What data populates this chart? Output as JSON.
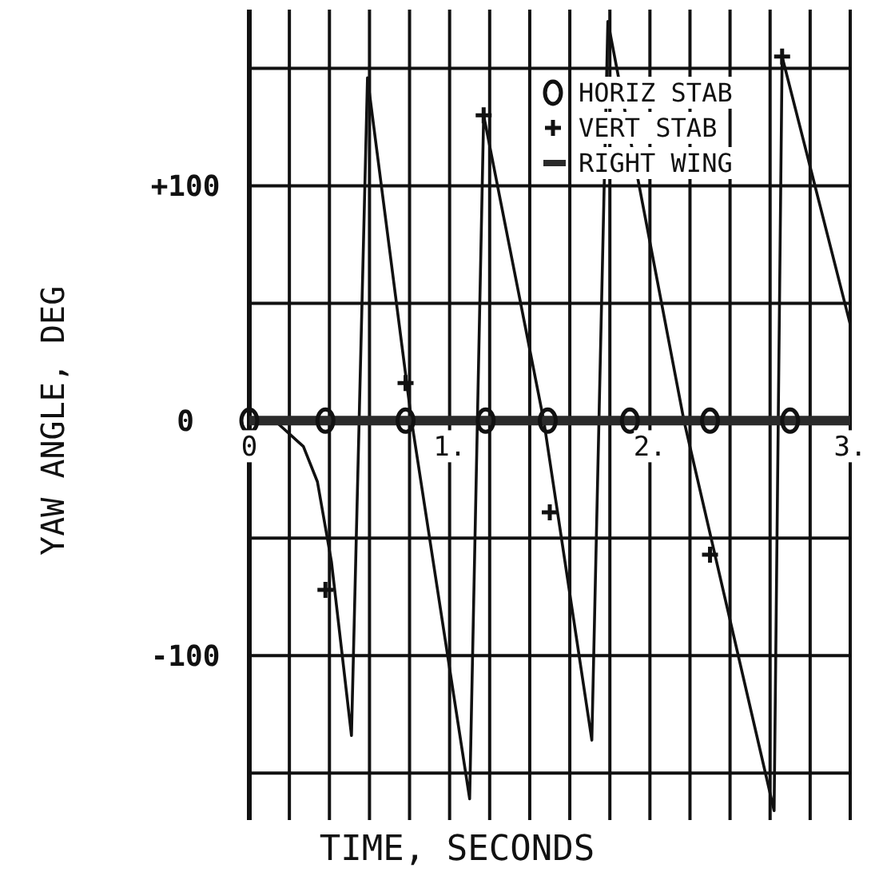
{
  "chart_data": {
    "type": "line",
    "xlabel": "TIME, SECONDS",
    "ylabel": "YAW ANGLE, DEG",
    "xlim": [
      0,
      3
    ],
    "ylim": [
      -170,
      175
    ],
    "xticks": [
      {
        "value": 0,
        "label": "0"
      },
      {
        "value": 0.2,
        "label": null
      },
      {
        "value": 0.4,
        "label": null
      },
      {
        "value": 0.6,
        "label": null
      },
      {
        "value": 0.8,
        "label": null
      },
      {
        "value": 1,
        "label": "1."
      },
      {
        "value": 1.2,
        "label": null
      },
      {
        "value": 1.4,
        "label": null
      },
      {
        "value": 1.6,
        "label": null
      },
      {
        "value": 1.8,
        "label": null
      },
      {
        "value": 2,
        "label": "2."
      },
      {
        "value": 2.2,
        "label": null
      },
      {
        "value": 2.4,
        "label": null
      },
      {
        "value": 2.6,
        "label": null
      },
      {
        "value": 2.8,
        "label": null
      },
      {
        "value": 3,
        "label": "3."
      }
    ],
    "yticks": [
      {
        "value": -150,
        "label": null
      },
      {
        "value": -100,
        "label": "-100"
      },
      {
        "value": -50,
        "label": null
      },
      {
        "value": 0,
        "label": "0"
      },
      {
        "value": 50,
        "label": null
      },
      {
        "value": 100,
        "label": "+100"
      },
      {
        "value": 150,
        "label": null
      }
    ],
    "grid": true,
    "legend": "top right",
    "series": [
      {
        "name": "HORIZ STAB",
        "type": "scatter",
        "marker": "circle",
        "color": "#111111",
        "x": [
          0,
          0.38,
          0.78,
          1.18,
          1.49,
          1.9,
          2.3,
          2.7
        ],
        "values": [
          0,
          0,
          0,
          0,
          0,
          0,
          0,
          0
        ]
      },
      {
        "name": "VERT STAB",
        "type": "scatter",
        "marker": "cross",
        "color": "#111111",
        "x": [
          0.38,
          0.78,
          1.17,
          1.5,
          2.3,
          2.66
        ],
        "values": [
          -72,
          16,
          130,
          -39,
          -57,
          155
        ]
      },
      {
        "name": "RIGHT WING",
        "marker": "none",
        "color": "#2a2a2a",
        "x": [
          0,
          3
        ],
        "values": [
          0,
          0
        ]
      },
      {
        "type": "line",
        "marker": "none",
        "color": "#111111",
        "x": [
          0,
          0.14,
          0.27,
          0.34,
          0.41,
          0.51,
          0.59,
          0.81,
          1.1,
          1.17,
          1.47,
          1.71,
          1.79,
          2.17,
          2.62,
          2.66,
          3.0
        ],
        "values": [
          0,
          -1,
          -11,
          -26,
          -60,
          -134,
          146,
          0,
          -161,
          130,
          0,
          -136,
          170,
          0,
          -166,
          155,
          41
        ]
      }
    ]
  }
}
